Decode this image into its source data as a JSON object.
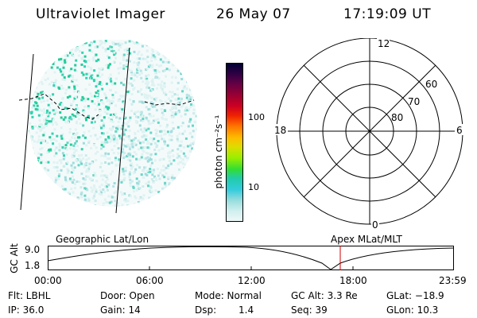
{
  "header": {
    "instrument": "Ultraviolet Imager",
    "date": "26 May 07",
    "time": "17:19:09 UT"
  },
  "colorbar": {
    "unit_label": "photon cm⁻²s⁻¹",
    "ticks": [
      "100",
      "10"
    ],
    "colors": [
      "#000033",
      "#330044",
      "#660044",
      "#990033",
      "#cc0022",
      "#ee2200",
      "#ff7700",
      "#ffbb00",
      "#dddd00",
      "#99ee00",
      "#33dd33",
      "#22ccaa",
      "#33ccdd",
      "#99dddd",
      "#cceeee",
      "#eef8f8"
    ]
  },
  "polar_plot": {
    "mlt_labels": {
      "top": "12",
      "left": "18",
      "right": "6",
      "bottom": "0"
    },
    "lat_labels": [
      "60",
      "70",
      "80"
    ]
  },
  "timeline": {
    "left_title": "Geographic Lat/Lon",
    "right_title": "Apex  MLat/MLT",
    "y_axis_label": "GC Alt",
    "y_ticks": [
      "9.0",
      "1.8"
    ],
    "x_ticks": [
      "00:00",
      "06:00",
      "12:00",
      "18:00",
      "23:59"
    ],
    "marker_color": "#cc0000"
  },
  "status": {
    "flt": "Flt: LBHL",
    "ip": "IP: 36.0",
    "door": "Door: Open",
    "gain": "Gain: 14",
    "mode": "Mode: Normal",
    "dsp_label": "Dsp:",
    "dsp_value": "1.4",
    "gc_alt": "GC Alt: 3.3 Re",
    "seq": "Seq: 39",
    "glat": "GLat:  −18.9",
    "glon": "GLon:  10.3"
  }
}
